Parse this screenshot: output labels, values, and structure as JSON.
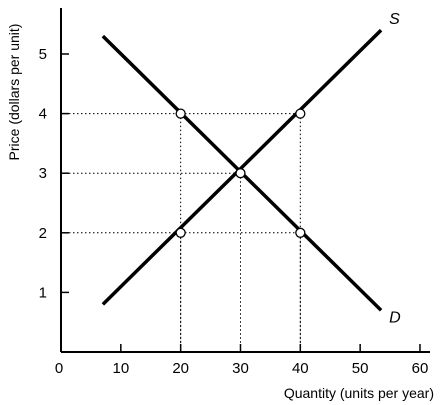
{
  "chart_data": {
    "type": "line",
    "title": "",
    "xlabel": "Quantity (units per year)",
    "ylabel": "Price (dollars per unit)",
    "origin_label": "0",
    "xlim": [
      0,
      60
    ],
    "ylim": [
      0,
      5.9
    ],
    "x_ticks": [
      10,
      20,
      30,
      40,
      50,
      60
    ],
    "y_ticks": [
      1,
      2,
      3,
      4,
      5
    ],
    "grid": false,
    "series": [
      {
        "name": "S",
        "x": [
          7,
          53.5
        ],
        "y": [
          0.8,
          5.4
        ]
      },
      {
        "name": "D",
        "x": [
          7,
          53.5
        ],
        "y": [
          5.3,
          0.7
        ]
      }
    ],
    "points": [
      {
        "x": 20,
        "y": 4
      },
      {
        "x": 40,
        "y": 4
      },
      {
        "x": 30,
        "y": 3
      },
      {
        "x": 20,
        "y": 2
      },
      {
        "x": 40,
        "y": 2
      }
    ],
    "dotted_guides": [
      {
        "x": 40,
        "y": 4
      },
      {
        "x": 30,
        "y": 3
      },
      {
        "x": 40,
        "y": 2
      }
    ]
  }
}
